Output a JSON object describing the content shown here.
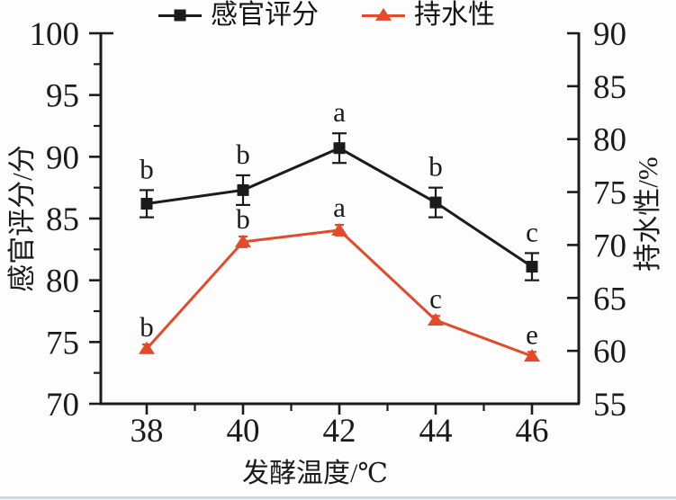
{
  "legend": {
    "series1": "感官评分",
    "series2": "持水性"
  },
  "axes": {
    "x_title": "发酵温度/℃",
    "left_title": "感官评分/分",
    "right_title": "持水性/%"
  },
  "colors": {
    "series1": "#1b1b1b",
    "series2": "#e4492a",
    "scan_artifact": "#c3cfdf"
  },
  "chart_data": {
    "type": "line",
    "x": [
      38,
      40,
      42,
      44,
      46
    ],
    "xlabel": "发酵温度/℃",
    "grid": "off",
    "legend_position": "top-center",
    "left_axis": {
      "label": "感官评分/分",
      "range": [
        70,
        100
      ],
      "major_ticks": [
        70,
        75,
        80,
        85,
        90,
        95,
        100
      ],
      "minor_ticks": [
        72.5,
        77.5,
        82.5,
        87.5,
        92.5,
        97.5
      ]
    },
    "right_axis": {
      "label": "持水性/%",
      "range": [
        55,
        90
      ],
      "major_ticks": [
        55,
        60,
        65,
        70,
        75,
        80,
        85,
        90
      ]
    },
    "x_minor_ticks": [
      39,
      41,
      43,
      45
    ],
    "series": [
      {
        "name": "感官评分",
        "axis": "left",
        "color": "#1b1b1b",
        "marker": "square",
        "values": [
          86.2,
          87.3,
          90.7,
          86.3,
          81.1
        ],
        "errors": [
          1.1,
          1.2,
          1.2,
          1.2,
          1.1
        ],
        "letters": [
          "b",
          "b",
          "a",
          "b",
          "c"
        ]
      },
      {
        "name": "持水性",
        "axis": "right",
        "color": "#e4492a",
        "marker": "triangle",
        "values": [
          60.2,
          70.3,
          71.4,
          62.9,
          59.5
        ],
        "errors": [
          0.4,
          0.5,
          0.5,
          0.4,
          0.4
        ],
        "letters": [
          "b",
          "b",
          "a",
          "c",
          "e"
        ]
      }
    ]
  }
}
